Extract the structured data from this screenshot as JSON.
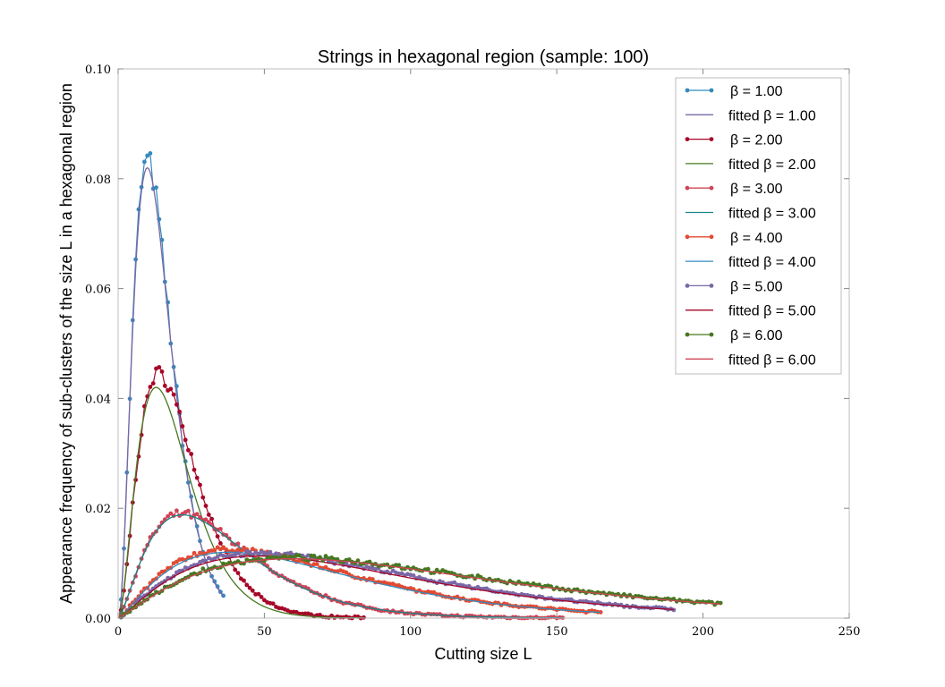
{
  "chart_data": {
    "type": "line",
    "title": "Strings in hexagonal region (sample: 100)",
    "xlabel": "Cutting size L",
    "ylabel": "Appearance frequency of sub-clusters of the size L in a hexagonal region",
    "xlim": [
      0,
      250
    ],
    "ylim": [
      0,
      0.1
    ],
    "xticks": [
      "0",
      "50",
      "100",
      "150",
      "200",
      "250"
    ],
    "yticks": [
      "0.00",
      "0.02",
      "0.04",
      "0.06",
      "0.08",
      "0.10"
    ],
    "grid": false,
    "legend_position": "top-right",
    "series": [
      {
        "name": "β = 1.00",
        "color": "#348ABD",
        "style": "line-marker",
        "peak": 10,
        "amplitude": 0.0833,
        "k": 2.3,
        "xmax": 36
      },
      {
        "name": "fitted β = 1.00",
        "color": "#7A68A6",
        "style": "line",
        "peak": 10,
        "amplitude": 0.082,
        "k": 2.3,
        "xmax": 36
      },
      {
        "name": "β = 2.00",
        "color": "#A60628",
        "style": "line-marker",
        "peak": 14,
        "amplitude": 0.0445,
        "k": 2.0,
        "xmax": 84
      },
      {
        "name": "fitted β = 2.00",
        "color": "#467821",
        "style": "line",
        "peak": 13,
        "amplitude": 0.042,
        "k": 2.0,
        "xmax": 84
      },
      {
        "name": "β = 3.00",
        "color": "#CF4457",
        "style": "line-marker",
        "peak": 22,
        "amplitude": 0.019,
        "k": 1.5,
        "xmax": 152
      },
      {
        "name": "fitted β = 3.00",
        "color": "#188487",
        "style": "line",
        "peak": 22,
        "amplitude": 0.0188,
        "k": 1.5,
        "xmax": 152
      },
      {
        "name": "β = 4.00",
        "color": "#E24A33",
        "style": "line-marker",
        "peak": 38,
        "amplitude": 0.0125,
        "k": 1.3,
        "xmax": 165
      },
      {
        "name": "fitted β = 4.00",
        "color": "#348ABD",
        "style": "line",
        "peak": 38,
        "amplitude": 0.012,
        "k": 1.3,
        "xmax": 165
      },
      {
        "name": "β = 5.00",
        "color": "#7A68A6",
        "style": "line-marker",
        "peak": 48,
        "amplitude": 0.0118,
        "k": 1.25,
        "xmax": 190
      },
      {
        "name": "fitted β = 5.00",
        "color": "#A60628",
        "style": "line",
        "peak": 48,
        "amplitude": 0.0113,
        "k": 1.25,
        "xmax": 190
      },
      {
        "name": "β = 6.00",
        "color": "#467821",
        "style": "line-marker",
        "peak": 60,
        "amplitude": 0.011,
        "k": 1.2,
        "xmax": 206
      },
      {
        "name": "fitted β = 6.00",
        "color": "#CF4457",
        "style": "line",
        "peak": 60,
        "amplitude": 0.0108,
        "k": 1.2,
        "xmax": 206
      }
    ]
  }
}
